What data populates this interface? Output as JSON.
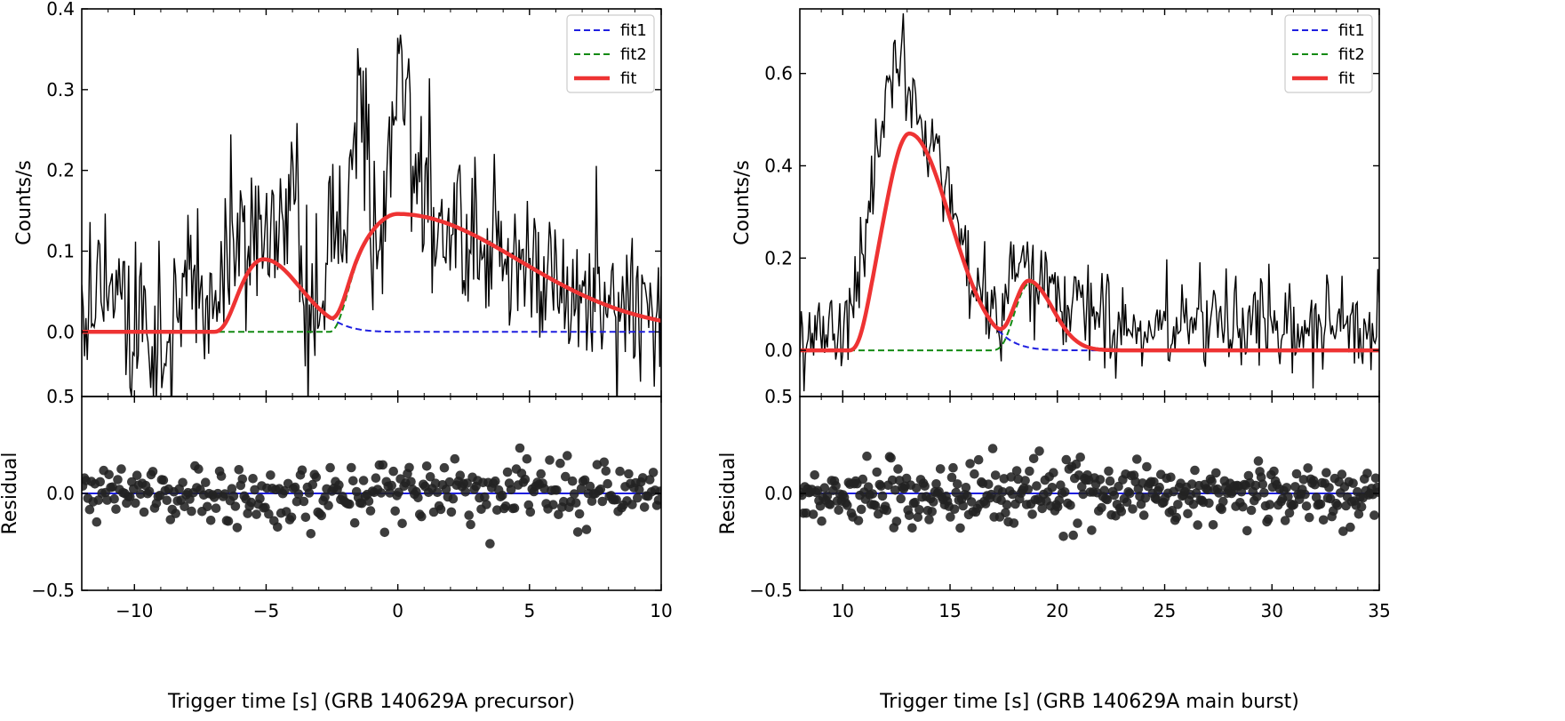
{
  "chart_data": [
    {
      "type": "line",
      "name": "precursor",
      "xlabel": "Trigger time [s] (GRB 140629A precursor)",
      "xlim": [
        -12.0,
        10.0
      ],
      "xticks": [
        -10,
        -5,
        0,
        5,
        10
      ],
      "top": {
        "ylabel": "Counts/s",
        "ylim": [
          -0.08,
          0.4
        ],
        "yticks": [
          0.0,
          0.1,
          0.2,
          0.3,
          0.4
        ],
        "ytick_labels": [
          "0.0",
          "0.1",
          "0.2",
          "0.3",
          "0.4"
        ],
        "bottom_label": "0.5",
        "legend": [
          "fit1",
          "fit2",
          "fit"
        ],
        "legend_position": "top-right",
        "fit1": {
          "amplitude": 0.09,
          "peak": -5.1,
          "rise": 1.0,
          "decay": 1.4
        },
        "fit2": {
          "amplitude": 0.146,
          "peak": 0.0,
          "rise": 1.7,
          "decay": 4.6
        },
        "fit_onset": [
          -7.0,
          -2.6
        ],
        "light_curve": {
          "x": [
            -12.0,
            -11.0,
            -10.0,
            -9.0,
            -8.0,
            -7.0,
            -6.0,
            -5.5,
            -5.0,
            -4.5,
            -4.0,
            -3.5,
            -3.0,
            -2.0,
            -1.4,
            -1.0,
            -0.5,
            0.0,
            0.3,
            0.6,
            1.0,
            1.5,
            2.0,
            3.0,
            4.0,
            5.0,
            6.0,
            7.0,
            8.0,
            9.0,
            10.0
          ],
          "y": [
            0.03,
            0.05,
            0.02,
            -0.02,
            0.04,
            0.05,
            0.13,
            0.08,
            0.16,
            0.1,
            0.22,
            0.05,
            0.02,
            0.13,
            0.3,
            0.18,
            0.1,
            0.38,
            0.3,
            0.2,
            0.17,
            0.12,
            0.15,
            0.1,
            0.09,
            0.07,
            0.05,
            0.04,
            0.06,
            0.02,
            0.03
          ],
          "noise": 0.05
        }
      },
      "bottom": {
        "ylabel": "Residual",
        "ylim": [
          -0.5,
          0.5
        ],
        "yticks": [
          -0.5,
          0.0,
          0.5
        ],
        "ytick_labels": [
          "−0.5",
          "0.0",
          "0.5"
        ],
        "zero_line": 0.0,
        "noise": 0.075,
        "n_points": 330
      }
    },
    {
      "type": "line",
      "name": "main-burst",
      "xlabel": "Trigger time [s] (GRB 140629A main burst)",
      "xlim": [
        8.0,
        35.0
      ],
      "xticks": [
        10,
        15,
        20,
        25,
        30,
        35
      ],
      "top": {
        "ylabel": "Counts/s",
        "ylim": [
          -0.1,
          0.74
        ],
        "yticks": [
          0.0,
          0.2,
          0.4,
          0.6
        ],
        "ytick_labels": [
          "0.0",
          "0.2",
          "0.4",
          "0.6"
        ],
        "bottom_label": "0.5",
        "legend": [
          "fit1",
          "fit2",
          "fit"
        ],
        "legend_position": "top-right",
        "fit1": {
          "amplitude": 0.47,
          "peak": 13.1,
          "rise": 1.2,
          "decay": 1.9
        },
        "fit2": {
          "amplitude": 0.145,
          "peak": 18.7,
          "rise": 0.7,
          "decay": 1.1
        },
        "fit_onset": [
          10.3,
          16.9
        ],
        "light_curve": {
          "x": [
            8.0,
            9.0,
            10.0,
            10.5,
            11.0,
            11.5,
            12.0,
            12.5,
            12.8,
            13.0,
            13.5,
            14.0,
            14.5,
            15.0,
            15.5,
            16.0,
            16.5,
            17.0,
            17.5,
            18.0,
            18.5,
            19.0,
            19.5,
            20.0,
            21.0,
            22.0,
            23.0,
            25.0,
            27.0,
            30.0,
            33.0,
            35.0
          ],
          "y": [
            0.02,
            0.03,
            0.04,
            0.12,
            0.25,
            0.4,
            0.5,
            0.62,
            0.68,
            0.55,
            0.5,
            0.45,
            0.42,
            0.36,
            0.28,
            0.15,
            0.12,
            0.09,
            0.08,
            0.18,
            0.2,
            0.14,
            0.15,
            0.1,
            0.1,
            0.07,
            0.05,
            0.06,
            0.07,
            0.05,
            0.04,
            0.04
          ],
          "noise": 0.05
        }
      },
      "bottom": {
        "ylabel": "Residual",
        "ylim": [
          -0.5,
          0.5
        ],
        "yticks": [
          -0.5,
          0.0,
          0.5
        ],
        "ytick_labels": [
          "−0.5",
          "0.0",
          "0.5"
        ],
        "zero_line": 0.0,
        "noise": 0.075,
        "n_points": 410
      }
    }
  ],
  "colors": {
    "data": "#000000",
    "fit1": "#1f1fe0",
    "fit2": "#138a13",
    "fit": "#ee3333",
    "residual_points": "#222222",
    "zero_line": "#1f1fe0"
  }
}
